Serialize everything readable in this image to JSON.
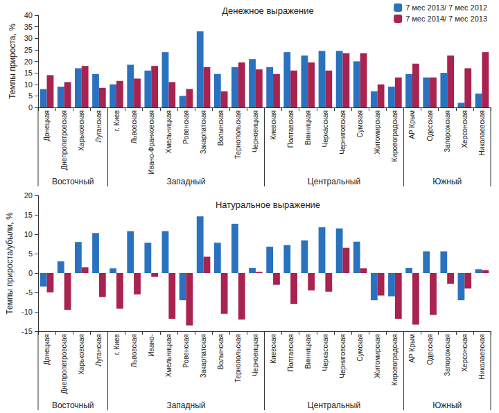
{
  "chart_data": [
    {
      "type": "bar",
      "title": "Денежное выражение",
      "y_label": "Темпы прироста, %",
      "categories": [
        "Донецкая",
        "Днепропетровская",
        "Харьковская",
        "Луганская",
        "г. Киев",
        "Львовская",
        "Ивано-Франковская",
        "Хмельницкая",
        "Ровенская",
        "Закарпатская",
        "Волынская",
        "Тернопольская",
        "Черновицкая",
        "Киевская",
        "Полтавская",
        "Винницкая",
        "Черкасская",
        "Черниговская",
        "Сумская",
        "Житомирская",
        "Кировоградская",
        "АР Крым",
        "Одесская",
        "Запорожская",
        "Херсонская",
        "Николаевская"
      ],
      "groups": [
        {
          "label": "Восточный",
          "categories": [
            "Донецкая",
            "Днепропетровская",
            "Харьковская",
            "Луганская"
          ]
        },
        {
          "label": "Западный",
          "categories": [
            "г. Киев",
            "Львовская",
            "Ивано-Франковская",
            "Хмельницкая",
            "Ровенская",
            "Закарпатская",
            "Волынская",
            "Тернопольская",
            "Черновицкая"
          ]
        },
        {
          "label": "Центральный",
          "categories": [
            "Киевская",
            "Полтавская",
            "Винницкая",
            "Черкасская",
            "Черниговская",
            "Сумская",
            "Житомирская",
            "Кировоградская"
          ]
        },
        {
          "label": "Южный",
          "categories": [
            "АР Крым",
            "Одесская",
            "Запорожская",
            "Херсонская",
            "Николаевская"
          ]
        }
      ],
      "series": [
        {
          "name": "7 мес 2013/ 7 мес 2012",
          "color": "#2a72bf",
          "values": [
            8,
            9,
            17,
            14.5,
            10,
            18.5,
            16,
            24,
            5,
            33,
            14.5,
            17.5,
            21,
            17.5,
            24,
            22.5,
            24.5,
            24.5,
            20,
            7,
            9,
            14.5,
            13,
            15,
            2,
            6
          ]
        },
        {
          "name": "7 мес 2014/ 7 мес 2013",
          "color": "#a8234f",
          "values": [
            14,
            11,
            18,
            8.5,
            11.5,
            12.5,
            18,
            11,
            8,
            17.5,
            7,
            19.5,
            16.5,
            14.5,
            16,
            19.5,
            16,
            23.5,
            23.5,
            10,
            13,
            19,
            13,
            22.5,
            17,
            24
          ]
        }
      ],
      "ylim": [
        0,
        40
      ],
      "yticks": [
        0,
        5,
        10,
        15,
        20,
        25,
        30,
        35,
        40
      ],
      "grid": false,
      "legend": "upper right"
    },
    {
      "type": "bar",
      "title": "Натуральное выражение",
      "y_label": "Темпы прироста/убыли, %",
      "categories": [
        "Донецкая",
        "Днепропетровская",
        "Харьковская",
        "Луганская",
        "г. Киев",
        "Львовская",
        "Ивано-",
        "Хмельницкая",
        "Ровенская",
        "Закарпатская",
        "Волынская",
        "Тернопольская",
        "Черновицкая",
        "Киевская",
        "Полтавская",
        "Винницкая",
        "Черкасская",
        "Черниговская",
        "Сумская",
        "Житомирская",
        "Кировоградская",
        "АР Крым",
        "Одесская",
        "Запорожская",
        "Херсонская",
        "Николаевская"
      ],
      "groups": [
        {
          "label": "Восточный",
          "categories": [
            "Донецкая",
            "Днепропетровская",
            "Харьковская",
            "Луганская"
          ]
        },
        {
          "label": "Западный",
          "categories": [
            "г. Киев",
            "Львовская",
            "Ивано-",
            "Хмельницкая",
            "Ровенская",
            "Закарпатская",
            "Волынская",
            "Тернопольская",
            "Черновицкая"
          ]
        },
        {
          "label": "Центральный",
          "categories": [
            "Киевская",
            "Полтавская",
            "Винницкая",
            "Черкасская",
            "Черниговская",
            "Сумская",
            "Житомирская",
            "Кировоградская"
          ]
        },
        {
          "label": "Южный",
          "categories": [
            "АР Крым",
            "Одесская",
            "Запорожская",
            "Херсонская",
            "Николаевская"
          ]
        }
      ],
      "series": [
        {
          "name": "7 мес 2013/ 7 мес 2012",
          "color": "#2a72bf",
          "values": [
            -3.5,
            3,
            8,
            10.3,
            1.2,
            10.8,
            7.8,
            10.8,
            -7,
            14.6,
            7.8,
            12.7,
            1.3,
            6.8,
            7.2,
            8.4,
            11.8,
            11.5,
            8.1,
            -7,
            -6,
            1.3,
            5.6,
            5.6,
            -7,
            1
          ]
        },
        {
          "name": "7 мес 2014/ 7 мес 2013",
          "color": "#a8234f",
          "values": [
            -5,
            -9.5,
            1.5,
            -6.2,
            -9.2,
            -5.5,
            -1,
            -11.8,
            -13.5,
            4.2,
            -10.5,
            -12,
            0.3,
            -3,
            -8,
            -4.5,
            -4.8,
            6.5,
            1.2,
            -5.8,
            -11.8,
            -13.3,
            -10.8,
            -2.8,
            -4,
            0.7
          ]
        }
      ],
      "ylim": [
        -15,
        20
      ],
      "yticks": [
        -15,
        -10,
        -5,
        0,
        5,
        10,
        15,
        20
      ],
      "grid": false
    }
  ]
}
